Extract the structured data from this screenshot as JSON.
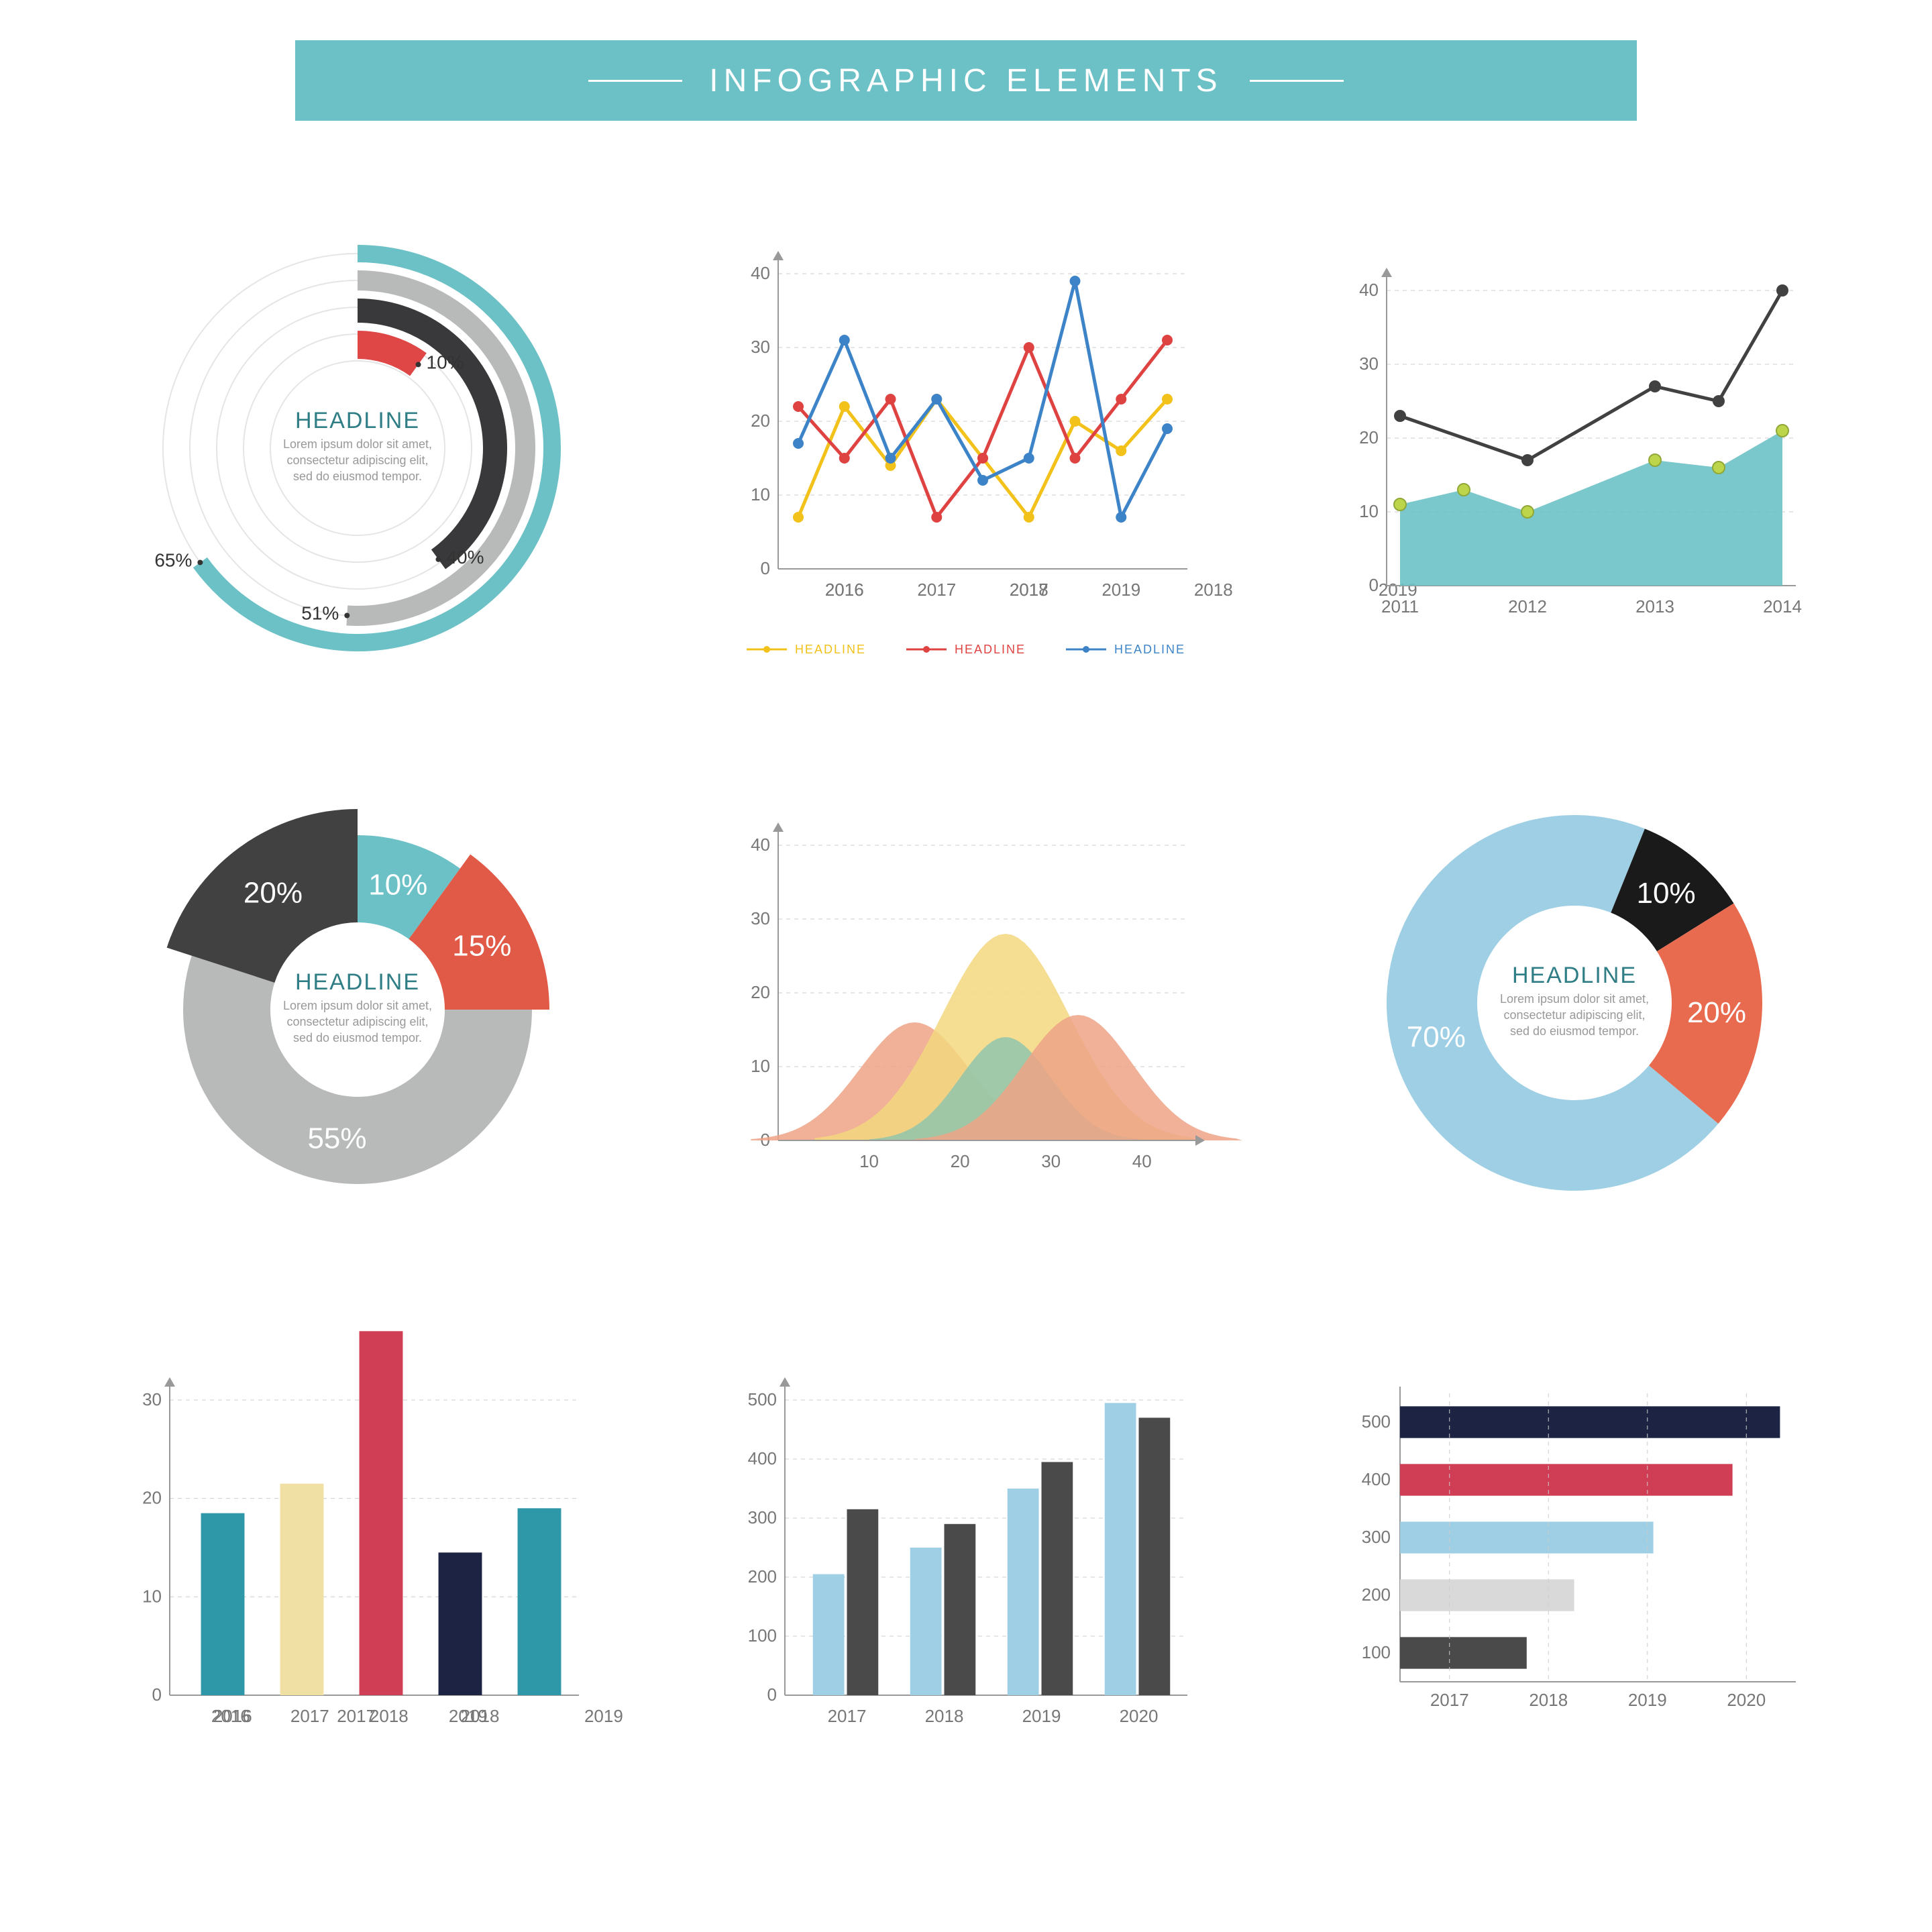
{
  "banner": {
    "bg": "#6cc1c6",
    "title": "INFOGRAPHIC ELEMENTS"
  },
  "radial": {
    "title": "HEADLINE",
    "body1": "Lorem ipsum dolor sit amet,",
    "body2": "consectetur adipiscing elit,",
    "body3": "sed do eiusmod tempor.",
    "rings": [
      {
        "pct": 65,
        "color": "#6cc1c6",
        "w": 26
      },
      {
        "pct": 51,
        "color": "#b8bab9",
        "w": 30
      },
      {
        "pct": 40,
        "color": "#39393b",
        "w": 36
      },
      {
        "pct": 10,
        "color": "#de4746",
        "w": 42
      }
    ],
    "grid_color": "#e5e5e5"
  },
  "line3": {
    "ylim": [
      0,
      40
    ],
    "ytick": 10,
    "xlabels": [
      "2016",
      "2017",
      "2018",
      "2019"
    ],
    "grid": "#ccc",
    "series": [
      {
        "color": "#f2c21a",
        "pts": [
          7,
          22,
          14,
          23,
          15,
          7,
          20,
          16,
          23
        ],
        "name": "HEADLINE"
      },
      {
        "color": "#de4342",
        "pts": [
          22,
          15,
          23,
          7,
          15,
          30,
          15,
          23,
          31
        ],
        "name": "HEADLINE"
      },
      {
        "color": "#3d83c8",
        "pts": [
          17,
          31,
          15,
          23,
          12,
          15,
          39,
          7,
          19
        ],
        "name": "HEADLINE"
      }
    ]
  },
  "area": {
    "ylim": [
      0,
      40
    ],
    "ytick": 10,
    "xlabels": [
      "2011",
      "2012",
      "2013",
      "2014"
    ],
    "grid": "#ccc",
    "fill": "#6cc1c6",
    "line": "#414141",
    "areapts": [
      [
        0,
        11
      ],
      [
        0.5,
        13
      ],
      [
        1,
        10
      ],
      [
        2,
        17
      ],
      [
        2.5,
        16
      ],
      [
        3,
        21
      ]
    ],
    "linepts": [
      [
        0,
        23
      ],
      [
        1,
        17
      ],
      [
        2,
        27
      ],
      [
        2.5,
        25
      ],
      [
        3,
        40
      ]
    ]
  },
  "burst": {
    "title": "HEADLINE",
    "body1": "Lorem ipsum dolor sit amet,",
    "body2": "consectetur adipiscing elit,",
    "body3": "sed do eiusmod tempor.",
    "slices": [
      {
        "pct": 55,
        "color": "#b8bab9",
        "r": 1.0,
        "label": "55%"
      },
      {
        "pct": 20,
        "color": "#414141",
        "r": 1.15,
        "label": "20%"
      },
      {
        "pct": 10,
        "color": "#6cc1c6",
        "r": 1.0,
        "label": "10%"
      },
      {
        "pct": 15,
        "color": "#e15a47",
        "r": 1.1,
        "label": "15%"
      }
    ]
  },
  "bells": {
    "ylim": [
      0,
      40
    ],
    "ytick": 10,
    "xmax": 45,
    "xticks": [
      10,
      20,
      30,
      40
    ],
    "grid": "#ccc",
    "curves": [
      {
        "mu": 15,
        "sig": 6,
        "h": 16,
        "color": "#eda386"
      },
      {
        "mu": 25,
        "sig": 7,
        "h": 28,
        "color": "#f3d77e"
      },
      {
        "mu": 25,
        "sig": 5,
        "h": 14,
        "color": "#8fc6ac"
      },
      {
        "mu": 33,
        "sig": 6,
        "h": 17,
        "color": "#eda386"
      }
    ]
  },
  "donut": {
    "title": "HEADLINE",
    "body1": "Lorem ipsum dolor sit amet,",
    "body2": "consectetur adipiscing elit,",
    "body3": "sed do eiusmod tempor.",
    "slices": [
      {
        "pct": 70,
        "color": "#9fcfe4",
        "label": "70%"
      },
      {
        "pct": 10,
        "color": "#1a1a1a",
        "label": "10%"
      },
      {
        "pct": 20,
        "color": "#e86a4f",
        "label": "20%"
      }
    ]
  },
  "bar1": {
    "ylim": [
      0,
      30
    ],
    "ytick": 10,
    "xlabels": [
      "2016",
      "2017",
      "2018",
      "2019"
    ],
    "grid": "#ccc",
    "barw": 0.55,
    "bars": [
      {
        "v": 18.5,
        "c": "#2f98a8"
      },
      {
        "v": 21.5,
        "c": "#f1e0a3"
      },
      {
        "v": 37,
        "c": "#cf3e54"
      },
      {
        "v": 14.5,
        "c": "#1d2343"
      },
      {
        "v": 19,
        "c": "#2f98a8"
      }
    ]
  },
  "bar2": {
    "ylim": [
      0,
      500
    ],
    "ytick": 100,
    "xlabels": [
      "2017",
      "2018",
      "2019",
      "2020"
    ],
    "grid": "#ccc",
    "groupw": 0.35,
    "groups": [
      [
        {
          "v": 205,
          "c": "#9fcfe4"
        },
        {
          "v": 315,
          "c": "#4a4a4a"
        }
      ],
      [
        {
          "v": 250,
          "c": "#9fcfe4"
        },
        {
          "v": 290,
          "c": "#4a4a4a"
        }
      ],
      [
        {
          "v": 350,
          "c": "#9fcfe4"
        },
        {
          "v": 395,
          "c": "#4a4a4a"
        }
      ],
      [
        {
          "v": 495,
          "c": "#9fcfe4"
        },
        {
          "v": 470,
          "c": "#4a4a4a"
        }
      ]
    ]
  },
  "hbar": {
    "xlim": [
      0,
      500
    ],
    "ylabels": [
      "500",
      "400",
      "300",
      "200",
      "100"
    ],
    "xlabels": [
      "2017",
      "2018",
      "2019",
      "2020"
    ],
    "grid": "#ccc",
    "barh": 0.55,
    "bars": [
      {
        "v": 480,
        "c": "#1d2343"
      },
      {
        "v": 420,
        "c": "#cf3e54"
      },
      {
        "v": 320,
        "c": "#9fcfe4"
      },
      {
        "v": 220,
        "c": "#d9d9d9"
      },
      {
        "v": 160,
        "c": "#4a4a4a"
      }
    ]
  }
}
